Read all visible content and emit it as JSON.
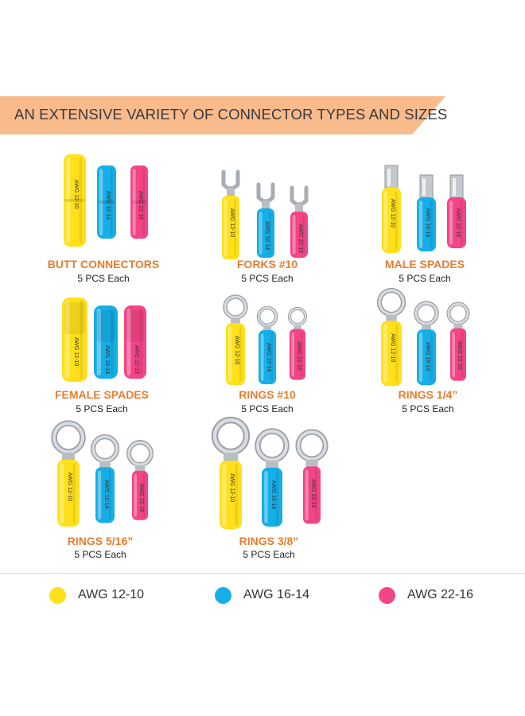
{
  "banner": {
    "title": "AN EXTENSIVE VARIETY OF CONNECTOR TYPES AND SIZES"
  },
  "colors": {
    "yellow": "#ffe01a",
    "blue": "#16aee6",
    "pink": "#f24486",
    "accent": "#e87c2f",
    "banner_bg": "#f9ba8c"
  },
  "products": [
    {
      "name": "BUTT CONNECTORS",
      "qty": "5 PCS Each",
      "shape": "butt",
      "prints": [
        "AWG 12-10",
        "AWG 16-14",
        "AWG 22-18"
      ]
    },
    {
      "name": "FORKS #10",
      "qty": "5 PCS Each",
      "shape": "fork",
      "prints": [
        "AWG 12-10",
        "AWG 16-14",
        "AWG 22-16"
      ]
    },
    {
      "name": "MALE SPADES",
      "qty": "5 PCS Each",
      "shape": "male",
      "prints": [
        "AWG 12-10",
        "AWG 16-14",
        "AWG 22-16"
      ]
    },
    {
      "name": "FEMALE SPADES",
      "qty": "5 PCS Each",
      "shape": "female",
      "prints": [
        "AWG 12-10",
        "AWG 16-14",
        "AWG 22-16"
      ]
    },
    {
      "name": "RINGS #10",
      "qty": "5 PCS Each",
      "shape": "ring10",
      "prints": [
        "AWG 12-10",
        "AWG 16-14",
        "AWG 22-16"
      ]
    },
    {
      "name": "RINGS 1/4”",
      "qty": "5 PCS Each",
      "shape": "ring14",
      "prints": [
        "AWG 12-10",
        "AWG 16-14",
        "AWG 22-16"
      ]
    },
    {
      "name": "RINGS 5/16”",
      "qty": "5 PCS Each",
      "shape": "ring516",
      "prints": [
        "AWG 12-10",
        "AWG 16-14",
        "AWG 22-16"
      ]
    },
    {
      "name": "RINGS 3/8”",
      "qty": "5 PCS Each",
      "shape": "ring38",
      "prints": [
        "AWG 12-10",
        "AWG 16-14",
        "AWG 22-16"
      ]
    }
  ],
  "legend": [
    {
      "label": "AWG 12-10",
      "color": "#ffe01a"
    },
    {
      "label": "AWG 16-14",
      "color": "#16aee6"
    },
    {
      "label": "AWG 22-16",
      "color": "#f24486"
    }
  ]
}
